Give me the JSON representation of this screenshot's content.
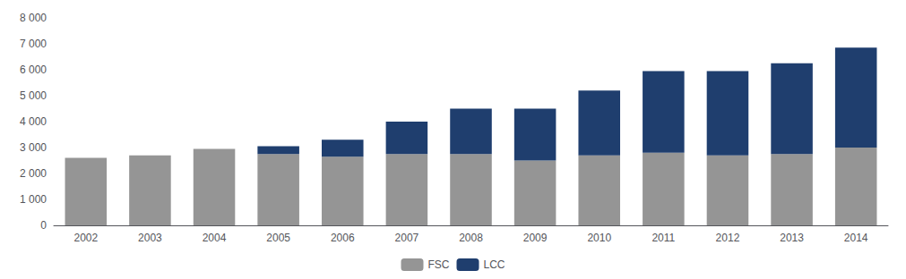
{
  "chart_data": {
    "type": "bar",
    "categories": [
      "2002",
      "2003",
      "2004",
      "2005",
      "2006",
      "2007",
      "2008",
      "2009",
      "2010",
      "2011",
      "2012",
      "2013",
      "2014"
    ],
    "series": [
      {
        "name": "FSC",
        "color": "#959595",
        "values": [
          2600,
          2700,
          2950,
          2750,
          2650,
          2750,
          2750,
          2500,
          2700,
          2800,
          2700,
          2750,
          3000
        ]
      },
      {
        "name": "LCC",
        "color": "#1f3e6e",
        "values": [
          0,
          0,
          0,
          300,
          650,
          1250,
          1750,
          2000,
          2500,
          3150,
          3250,
          3500,
          3850
        ]
      }
    ],
    "stacked": true,
    "ylim": [
      0,
      8000
    ],
    "yticks": [
      0,
      {
        "value": 1000,
        "label": "1 000"
      },
      {
        "value": 2000,
        "label": "2 000"
      },
      {
        "value": 3000,
        "label": "3 000"
      },
      {
        "value": 4000,
        "label": "4 000"
      },
      {
        "value": 5000,
        "label": "5 000"
      },
      {
        "value": 6000,
        "label": "6 000"
      },
      {
        "value": 7000,
        "label": "7 000"
      },
      {
        "value": 8000,
        "label": "8 000"
      }
    ],
    "grid": false,
    "legend": "bottom"
  }
}
